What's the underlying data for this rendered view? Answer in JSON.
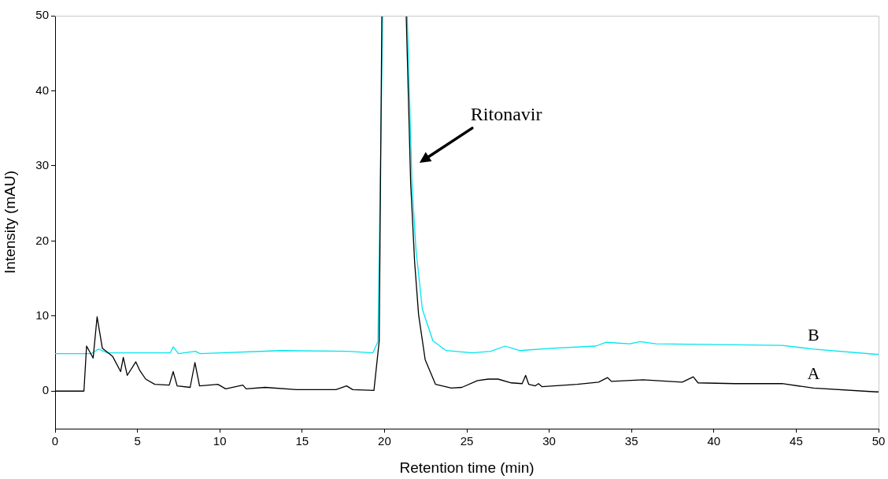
{
  "chart_data": {
    "type": "line",
    "xlabel": "Retention time (min)",
    "ylabel": "Intensity (mAU)",
    "xlim": [
      0,
      50
    ],
    "xticks": [
      0,
      5,
      10,
      15,
      20,
      25,
      30,
      35,
      40,
      45,
      50
    ],
    "ylim": [
      -5,
      50
    ],
    "yticks": [
      0,
      10,
      20,
      30,
      40,
      50
    ],
    "grid": false,
    "legend": false,
    "marker": "none",
    "line_style": "solid",
    "annotations": [
      "Ritonavir"
    ],
    "series": [
      {
        "name": "A",
        "color": "#000000",
        "x": [
          0,
          1.75,
          1.91,
          2.31,
          2.55,
          2.87,
          3.5,
          3.98,
          4.14,
          4.38,
          4.9,
          5.13,
          5.5,
          6.05,
          6.93,
          7.17,
          7.41,
          8.2,
          8.49,
          8.77,
          9.88,
          10.36,
          11.4,
          11.6,
          12.75,
          14.66,
          17.05,
          17.7,
          18.07,
          19.36,
          19.68,
          19.84,
          21.32,
          21.59,
          21.83,
          22.07,
          22.47,
          23.1,
          24.06,
          24.7,
          25.65,
          26.3,
          26.9,
          27.7,
          28.36,
          28.57,
          28.76,
          29.16,
          29.35,
          29.56,
          31.7,
          33.0,
          33.54,
          33.78,
          35.7,
          38.08,
          38.75,
          39.04,
          41.27,
          44.14,
          46.05,
          49.87,
          50
        ],
        "values": [
          0,
          0,
          6.0,
          4.4,
          9.9,
          5.7,
          4.6,
          2.6,
          4.5,
          2.1,
          3.9,
          2.8,
          1.6,
          0.9,
          0.8,
          2.6,
          0.7,
          0.5,
          3.8,
          0.7,
          0.9,
          0.3,
          0.8,
          0.3,
          0.5,
          0.2,
          0.2,
          0.7,
          0.2,
          0.1,
          6.7,
          50,
          50,
          27.7,
          17.2,
          10.2,
          4.2,
          0.9,
          0.4,
          0.5,
          1.4,
          1.6,
          1.6,
          1.1,
          1.0,
          2.1,
          0.9,
          0.7,
          1.0,
          0.6,
          0.9,
          1.2,
          1.8,
          1.3,
          1.5,
          1.2,
          1.9,
          1.1,
          1.0,
          1.0,
          0.4,
          -0.1,
          -0.1
        ]
      },
      {
        "name": "B",
        "color": "#00e5ee",
        "x": [
          0,
          2.2,
          2.63,
          3.19,
          7.0,
          7.17,
          7.49,
          8.52,
          8.8,
          13.7,
          17.77,
          19.3,
          19.6,
          19.89,
          21.38,
          21.67,
          21.91,
          22.3,
          22.94,
          23.74,
          25.33,
          26.45,
          27.33,
          28.2,
          30.1,
          32.82,
          33.46,
          34.9,
          35.53,
          36.49,
          44.14,
          46.05,
          49.87,
          50
        ],
        "values": [
          5.0,
          5.0,
          5.6,
          5.1,
          5.1,
          5.9,
          5.0,
          5.3,
          5.0,
          5.4,
          5.3,
          5.1,
          6.6,
          50,
          50,
          27.7,
          18.9,
          10.9,
          6.7,
          5.4,
          5.1,
          5.3,
          6.0,
          5.4,
          5.7,
          6.0,
          6.5,
          6.3,
          6.6,
          6.3,
          6.1,
          5.6,
          4.9,
          4.9
        ]
      }
    ]
  }
}
